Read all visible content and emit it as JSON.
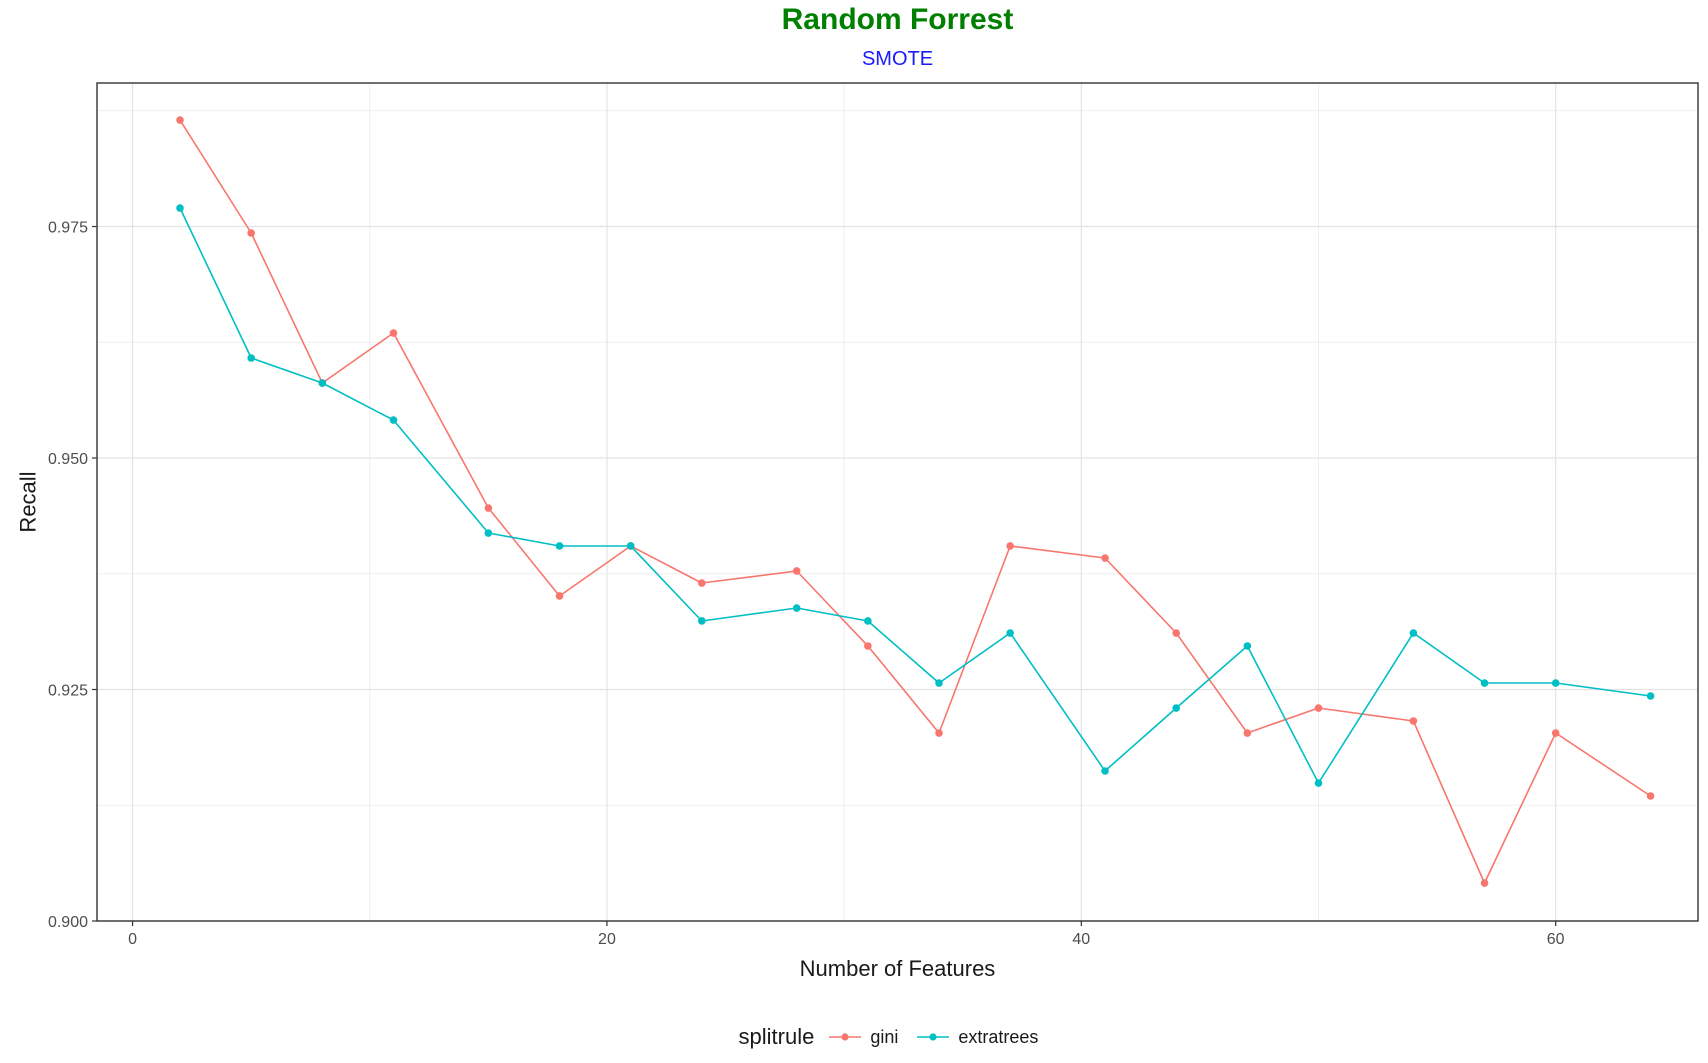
{
  "chart_data": {
    "type": "line",
    "title": "Random Forrest",
    "subtitle": "SMOTE",
    "xlabel": "Number of Features",
    "ylabel": "Recall",
    "xlim": [
      -1.5,
      66
    ],
    "ylim": [
      0.9,
      0.9905
    ],
    "xticks": [
      0,
      20,
      40,
      60
    ],
    "xtick_labels": [
      "0",
      "20",
      "40",
      "60"
    ],
    "yticks": [
      0.9,
      0.925,
      0.95,
      0.975
    ],
    "ytick_labels": [
      "0.900",
      "0.925",
      "0.950",
      "0.975"
    ],
    "grid": true,
    "legend_position": "bottom",
    "legend_title": "splitrule",
    "series": [
      {
        "name": "gini",
        "color": "#f8766d",
        "x": [
          2,
          5,
          8,
          11,
          15,
          18,
          21,
          24,
          28,
          31,
          34,
          37,
          41,
          44,
          47,
          50,
          54,
          57,
          60,
          64
        ],
        "y": [
          0.9865,
          0.9743,
          0.9581,
          0.9635,
          0.9446,
          0.9351,
          0.9405,
          0.9365,
          0.9378,
          0.9297,
          0.9203,
          0.9405,
          0.9392,
          0.9311,
          0.9203,
          0.923,
          0.9216,
          0.9041,
          0.9203,
          0.9135
        ]
      },
      {
        "name": "extratrees",
        "color": "#00bfc4",
        "x": [
          2,
          5,
          8,
          11,
          15,
          18,
          21,
          24,
          28,
          31,
          34,
          37,
          41,
          44,
          47,
          50,
          54,
          57,
          60,
          64
        ],
        "y": [
          0.977,
          0.9608,
          0.9581,
          0.9541,
          0.9419,
          0.9405,
          0.9405,
          0.9324,
          0.9338,
          0.9324,
          0.9257,
          0.9311,
          0.9162,
          0.923,
          0.9297,
          0.9149,
          0.9311,
          0.9257,
          0.9257,
          0.9243
        ]
      }
    ]
  }
}
